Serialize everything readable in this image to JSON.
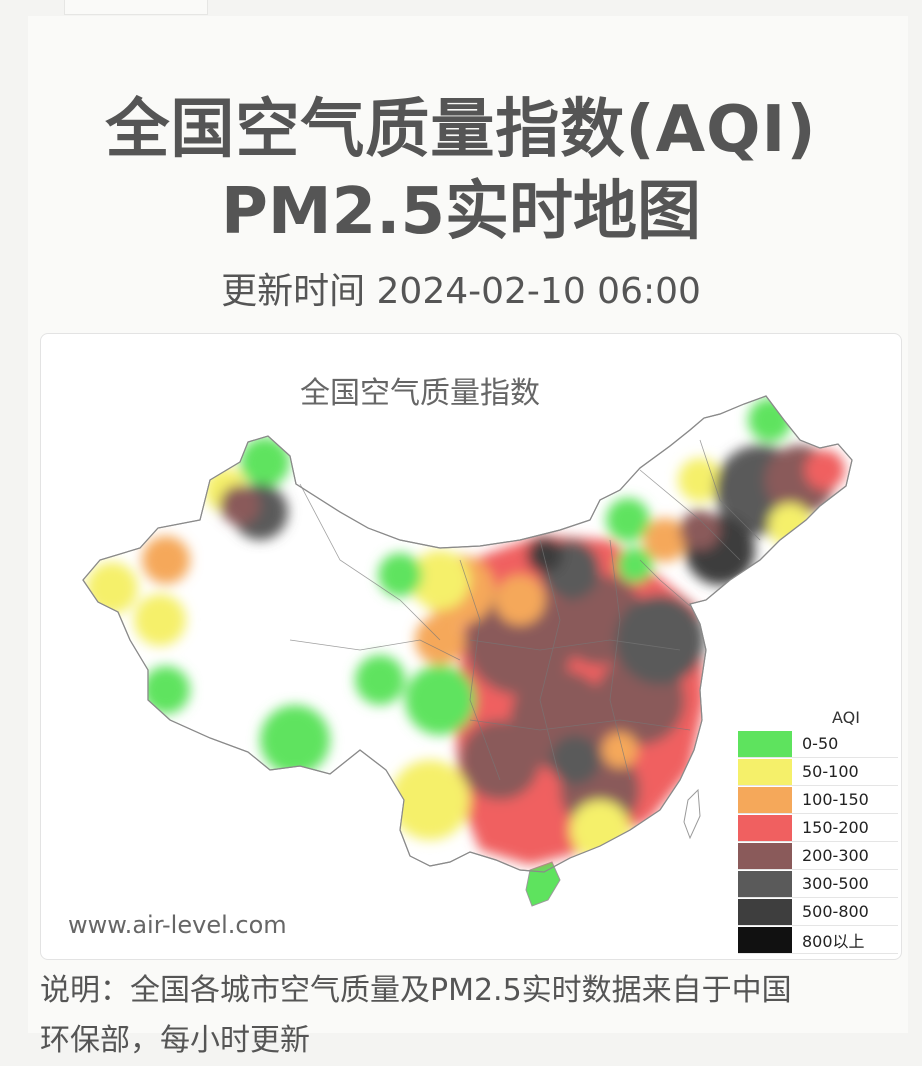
{
  "header": {
    "title_line1": "全国空气质量指数(AQI)",
    "title_line2": "PM2.5实时地图",
    "updated": "更新时间 2024-02-10 06:00"
  },
  "map": {
    "title": "全国空气质量指数",
    "watermark": "www.air-level.com",
    "legend": {
      "title": "AQI",
      "items": [
        {
          "label": "0-50",
          "color": "#5ee35e"
        },
        {
          "label": "50-100",
          "color": "#f5f06a"
        },
        {
          "label": "100-150",
          "color": "#f5a85a"
        },
        {
          "label": "150-200",
          "color": "#f06060"
        },
        {
          "label": "200-300",
          "color": "#8a5a5a"
        },
        {
          "label": "300-500",
          "color": "#5a5a5a"
        },
        {
          "label": "500-800",
          "color": "#3e3e3e"
        },
        {
          "label": "800以上",
          "color": "#111111"
        }
      ]
    }
  },
  "footer": {
    "note_line1": "说明：全国各城市空气质量及PM2.5实时数据来自于中国",
    "note_line2": "环保部，每小时更新"
  }
}
